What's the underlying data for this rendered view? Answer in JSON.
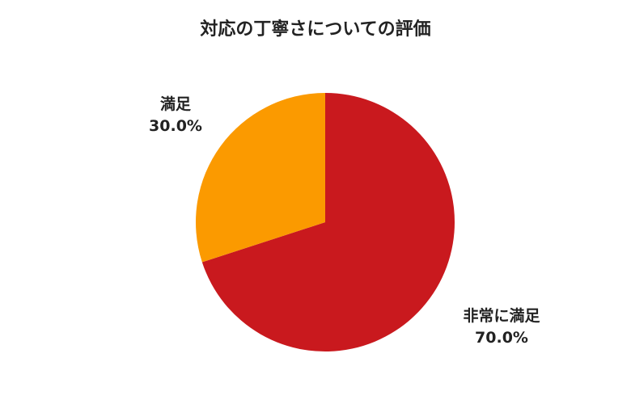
{
  "chart_data": {
    "type": "pie",
    "title": "対応の丁寧さについての評価",
    "start": "top, clockwise",
    "slices": [
      {
        "label": "非常に満足",
        "value": 70.0,
        "display": "70.0%",
        "color": "#c9191e"
      },
      {
        "label": "満足",
        "value": 30.0,
        "display": "30.0%",
        "color": "#fb9a00"
      }
    ]
  }
}
